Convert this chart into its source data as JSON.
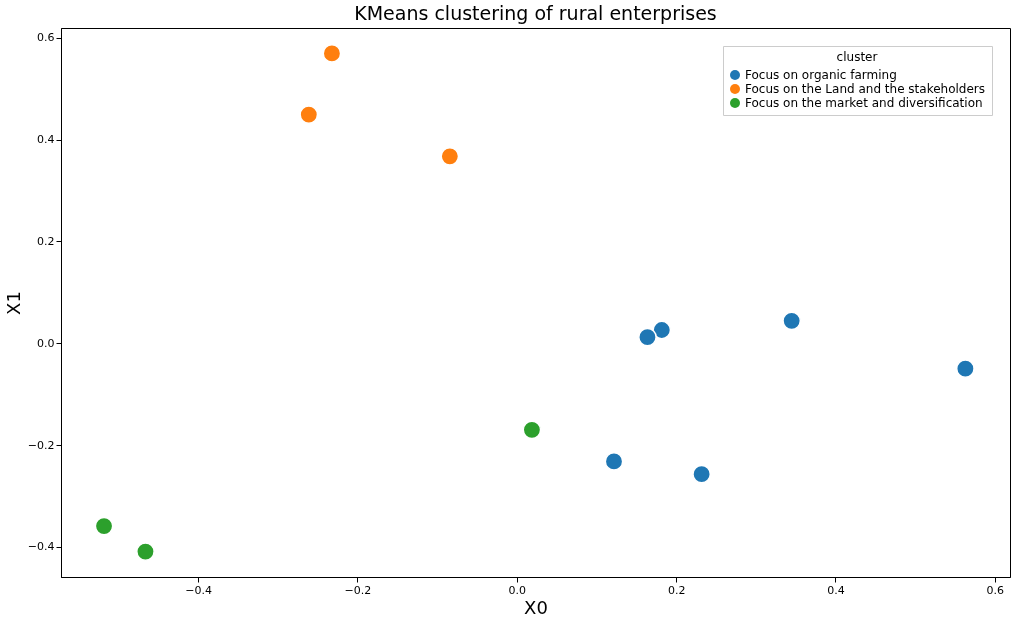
{
  "chart_data": {
    "type": "scatter",
    "title": "KMeans clustering of rural enterprises",
    "xlabel": "X0",
    "ylabel": "X1",
    "legend_title": "cluster",
    "legend": "top right",
    "grid": false,
    "marker": "circle",
    "xlim": [
      -0.572,
      0.619
    ],
    "ylim": [
      -0.459,
      0.619
    ],
    "xticks": [
      -0.4,
      -0.2,
      {
        "value": 0,
        "label": "0.0"
      },
      0.2,
      0.4,
      0.6
    ],
    "yticks": [
      -0.4,
      -0.2,
      {
        "value": 0,
        "label": "0.0"
      },
      0.2,
      0.4,
      0.6
    ],
    "series": [
      {
        "name": "Focus on organic farming",
        "color": "#1f77b4",
        "x": [
          0.182,
          0.164,
          0.345,
          0.563,
          0.122,
          0.232
        ],
        "values": [
          0.026,
          0.012,
          0.044,
          -0.05,
          -0.232,
          -0.257
        ]
      },
      {
        "name": "Focus on the Land and the stakeholders",
        "color": "#ff7f0e",
        "x": [
          -0.232,
          -0.261,
          -0.084
        ],
        "values": [
          0.569,
          0.449,
          0.367
        ]
      },
      {
        "name": "Focus on the market and diversification",
        "color": "#2ca02c",
        "x": [
          0.019,
          -0.518,
          -0.466
        ],
        "values": [
          -0.17,
          -0.359,
          -0.409
        ]
      }
    ]
  }
}
